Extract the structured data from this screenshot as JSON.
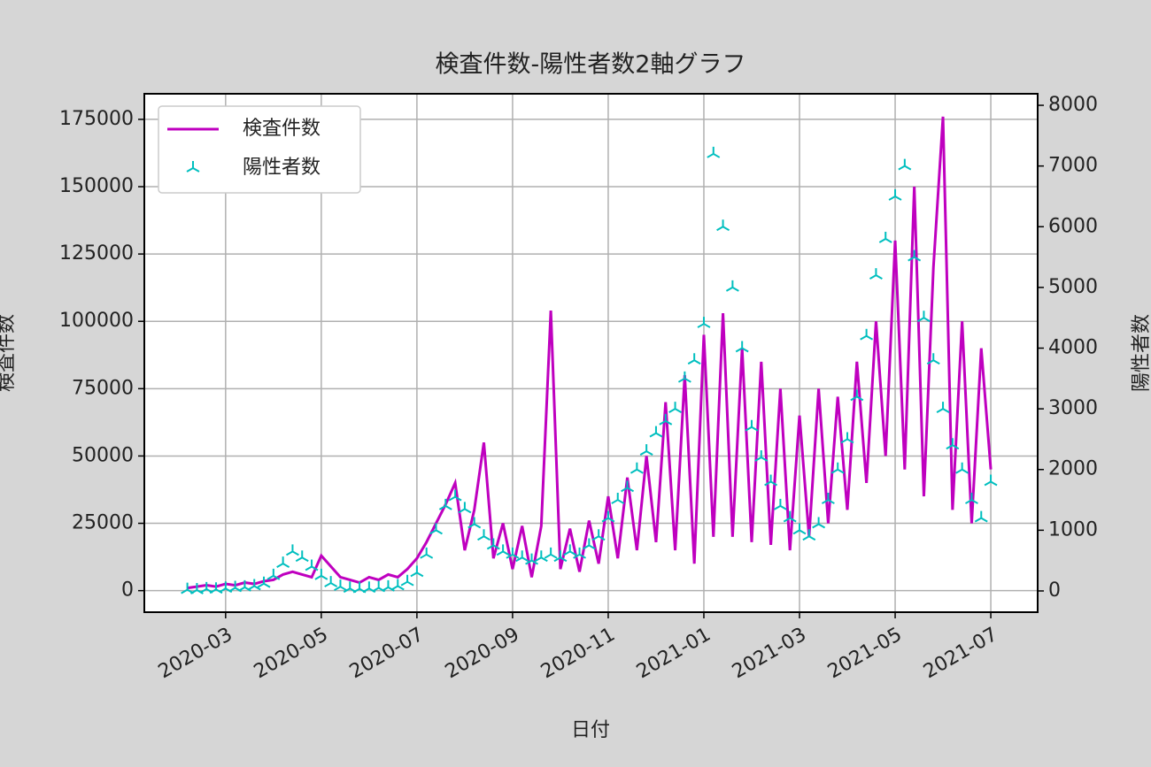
{
  "chart_data": {
    "type": "line",
    "title": "検査件数-陽性者数2軸グラフ",
    "xlabel": "日付",
    "ylabel": "検査件数",
    "y2label": "陽性者数",
    "x": [
      1.2,
      1.4,
      1.6,
      1.8,
      2.0,
      2.2,
      2.4,
      2.6,
      2.8,
      3.0,
      3.2,
      3.4,
      3.6,
      3.8,
      4.0,
      4.2,
      4.4,
      4.6,
      4.8,
      5.0,
      5.2,
      5.4,
      5.6,
      5.8,
      6.0,
      6.2,
      6.4,
      6.6,
      6.8,
      7.0,
      7.2,
      7.4,
      7.6,
      7.8,
      8.0,
      8.2,
      8.4,
      8.6,
      8.8,
      9.0,
      9.2,
      9.4,
      9.6,
      9.8,
      10.0,
      10.2,
      10.4,
      10.6,
      10.8,
      11.0,
      11.2,
      11.4,
      11.6,
      11.8,
      12.0,
      12.2,
      12.4,
      12.6,
      12.8,
      13.0,
      13.2,
      13.4,
      13.6,
      13.8,
      14.0,
      14.2,
      14.4,
      14.6,
      14.8,
      15.0,
      15.2,
      15.4,
      15.6,
      15.8,
      16.0,
      16.2,
      16.4,
      16.6,
      16.8,
      17.0,
      17.2,
      17.4,
      17.6,
      17.8,
      18.0
    ],
    "series": [
      {
        "name": "検査件数",
        "color": "#bf00bf",
        "type": "line",
        "values": [
          1000,
          1500,
          2000,
          1500,
          2500,
          2000,
          3000,
          2500,
          3500,
          4000,
          6000,
          7000,
          6000,
          5000,
          13000,
          9000,
          5000,
          4000,
          3000,
          5000,
          4000,
          6000,
          5000,
          8000,
          12000,
          18000,
          25000,
          32000,
          40000,
          15000,
          30000,
          55000,
          12000,
          25000,
          8000,
          24000,
          5000,
          24000,
          104000,
          8000,
          23000,
          7000,
          26000,
          10000,
          35000,
          12000,
          42000,
          15000,
          50000,
          18000,
          70000,
          15000,
          80000,
          10000,
          95000,
          20000,
          103000,
          20000,
          90000,
          18000,
          85000,
          17000,
          75000,
          15000,
          65000,
          20000,
          75000,
          25000,
          72000,
          30000,
          85000,
          40000,
          100000,
          50000,
          130000,
          45000,
          150000,
          35000,
          120000,
          176000,
          30000,
          100000,
          25000,
          90000,
          45000
        ]
      },
      {
        "name": "陽性者数",
        "color": "#00bfbf",
        "type": "scatter",
        "axis": "y2",
        "values": [
          20,
          15,
          30,
          25,
          40,
          50,
          60,
          80,
          120,
          250,
          450,
          650,
          550,
          400,
          250,
          130,
          70,
          40,
          35,
          40,
          50,
          60,
          80,
          150,
          300,
          600,
          1000,
          1400,
          1550,
          1350,
          1100,
          900,
          750,
          650,
          600,
          550,
          500,
          550,
          600,
          550,
          650,
          600,
          750,
          900,
          1200,
          1500,
          1700,
          2000,
          2300,
          2600,
          2800,
          3000,
          3500,
          3800,
          4400,
          7200,
          6000,
          5000,
          4000,
          2700,
          2200,
          1800,
          1400,
          1200,
          1000,
          900,
          1100,
          1500,
          2000,
          2500,
          3200,
          4200,
          5200,
          5800,
          6500,
          7000,
          5500,
          4500,
          3800,
          3000,
          2400,
          2000,
          1500,
          1200,
          1800
        ]
      }
    ],
    "xlim": [
      0.3,
      18.98
    ],
    "xticks": [
      {
        "value": 2,
        "label": "2020-03"
      },
      {
        "value": 4,
        "label": "2020-05"
      },
      {
        "value": 6,
        "label": "2020-07"
      },
      {
        "value": 8,
        "label": "2020-09"
      },
      {
        "value": 10,
        "label": "2020-11"
      },
      {
        "value": 12,
        "label": "2021-01"
      },
      {
        "value": 14,
        "label": "2021-03"
      },
      {
        "value": 16,
        "label": "2021-05"
      },
      {
        "value": 18,
        "label": "2021-07"
      }
    ],
    "ylim": [
      -8000,
      184500
    ],
    "yticks": [
      0,
      25000,
      50000,
      75000,
      100000,
      125000,
      150000,
      175000
    ],
    "y2lim": [
      -350,
      8190
    ],
    "y2ticks": [
      0,
      1000,
      2000,
      3000,
      4000,
      5000,
      6000,
      7000,
      8000
    ],
    "grid": true,
    "legend": "upper left"
  }
}
